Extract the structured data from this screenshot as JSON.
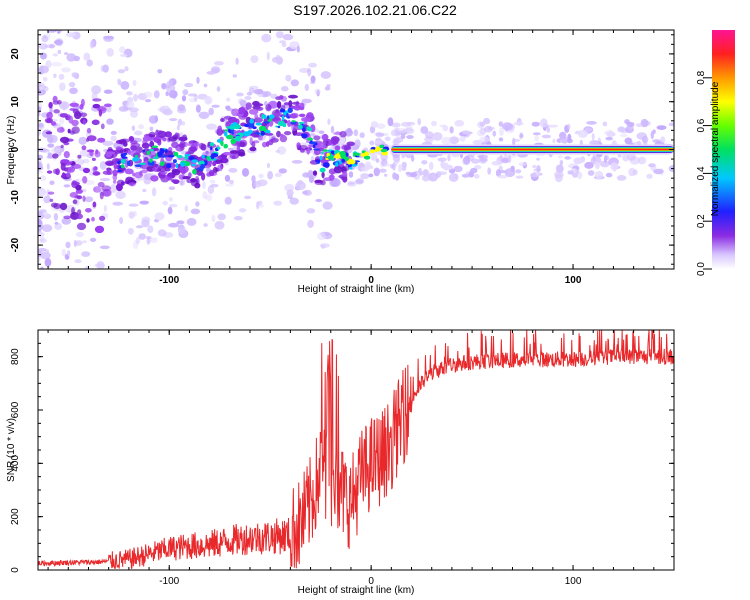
{
  "title": "S197.2026.102.21.06.C22",
  "chart_data": [
    {
      "type": "heatmap",
      "name": "spectrogram",
      "xlabel": "Height of straight line (km)",
      "ylabel": "Frequency (Hz)",
      "xlim": [
        -165,
        150
      ],
      "ylim": [
        -25,
        25
      ],
      "xticks": [
        -100,
        0,
        100
      ],
      "yticks": [
        -20,
        -10,
        0,
        10,
        20
      ],
      "colorbar": {
        "label": "Normalized spectral amplitude",
        "range": [
          0,
          1
        ],
        "ticks": [
          0.0,
          0.2,
          0.4,
          0.6,
          0.8
        ]
      },
      "ridge": {
        "points": [
          {
            "x": -125,
            "y": -3
          },
          {
            "x": -105,
            "y": -1
          },
          {
            "x": -85,
            "y": -3
          },
          {
            "x": -70,
            "y": 3
          },
          {
            "x": -55,
            "y": 5
          },
          {
            "x": -40,
            "y": 7
          },
          {
            "x": -30,
            "y": 2
          },
          {
            "x": -25,
            "y": -3
          },
          {
            "x": -20,
            "y": -1
          },
          {
            "x": -10,
            "y": -2
          },
          {
            "x": 5,
            "y": 0
          },
          {
            "x": 150,
            "y": 0
          }
        ],
        "stable_band": {
          "x_start": 10,
          "x_end": 150,
          "y": 0
        }
      }
    },
    {
      "type": "line",
      "name": "snr",
      "xlabel": "Height of straight line (km)",
      "ylabel": "SNR (10 * v/v)",
      "xlim": [
        -165,
        150
      ],
      "ylim": [
        0,
        900
      ],
      "xticks": [
        -100,
        0,
        100
      ],
      "yticks": [
        0,
        200,
        400,
        600,
        800
      ],
      "color": "#e8282a",
      "series": [
        {
          "name": "SNR",
          "x": [
            -165,
            -150,
            -135,
            -120,
            -110,
            -100,
            -90,
            -80,
            -70,
            -60,
            -50,
            -40,
            -35,
            -30,
            -25,
            -20,
            -15,
            -10,
            -5,
            0,
            5,
            10,
            15,
            20,
            25,
            30,
            40,
            50,
            60,
            80,
            100,
            120,
            140,
            150
          ],
          "y": [
            25,
            28,
            30,
            40,
            60,
            80,
            90,
            95,
            110,
            120,
            125,
            130,
            170,
            250,
            380,
            330,
            300,
            250,
            350,
            400,
            420,
            480,
            560,
            640,
            700,
            740,
            770,
            780,
            785,
            790,
            790,
            800,
            800,
            800
          ]
        }
      ]
    }
  ]
}
